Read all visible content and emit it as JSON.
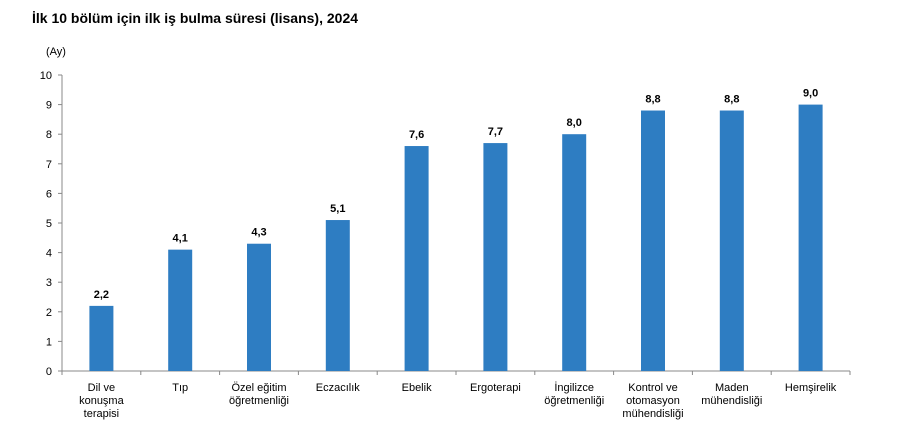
{
  "chart_data": {
    "type": "bar",
    "title": "İlk 10 bölüm için ilk iş bulma süresi (lisans), 2024",
    "ylabel": "(Ay)",
    "xlabel": "",
    "ylim": [
      0,
      10
    ],
    "yticks": [
      "0",
      "1",
      "2",
      "3",
      "4",
      "5",
      "6",
      "7",
      "8",
      "9",
      "10"
    ],
    "categories": [
      [
        "Dil ve",
        "konuşma",
        "terapisi"
      ],
      [
        "Tıp"
      ],
      [
        "Özel eğitim",
        "öğretmenliği"
      ],
      [
        "Eczacılık"
      ],
      [
        "Ebelik"
      ],
      [
        "Ergoterapi"
      ],
      [
        "İngilizce",
        "öğretmenliği"
      ],
      [
        "Kontrol ve",
        "otomasyon",
        "mühendisliği"
      ],
      [
        "Maden",
        "mühendisliği"
      ],
      [
        "Hemşirelik"
      ]
    ],
    "values": [
      2.2,
      4.1,
      4.3,
      5.1,
      7.6,
      7.7,
      8.0,
      8.8,
      8.8,
      9.0
    ],
    "value_labels": [
      "2,2",
      "4,1",
      "4,3",
      "5,1",
      "7,6",
      "7,7",
      "8,0",
      "8,8",
      "8,8",
      "9,0"
    ],
    "bar_color": "#2E7DC2",
    "grid": false
  }
}
